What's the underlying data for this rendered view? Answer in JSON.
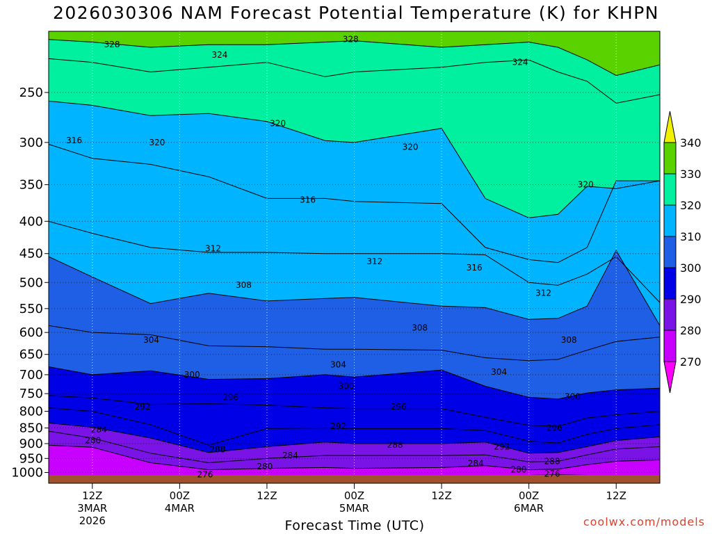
{
  "title": "2026030306 NAM Forecast Potential Temperature (K) for KHPN",
  "watermark": "coolwx.com/models",
  "chart_data": {
    "type": "area",
    "title": "2026030306 NAM Forecast Potential Temperature (K) for KHPN",
    "xlabel": "Forecast Time (UTC)",
    "ylabel": "",
    "y_axis": {
      "scale": "log",
      "inverted": true,
      "range_hPa": [
        1040,
        200
      ],
      "ticks": [
        250,
        300,
        350,
        400,
        450,
        500,
        550,
        600,
        650,
        700,
        750,
        800,
        850,
        900,
        950,
        1000
      ]
    },
    "x_axis": {
      "range_hours": [
        0,
        84
      ],
      "ticks": [
        {
          "hour": 6,
          "lines": [
            "12Z",
            "3MAR",
            "2026"
          ]
        },
        {
          "hour": 18,
          "lines": [
            "00Z",
            "4MAR"
          ]
        },
        {
          "hour": 30,
          "lines": [
            "12Z"
          ]
        },
        {
          "hour": 42,
          "lines": [
            "00Z",
            "5MAR"
          ]
        },
        {
          "hour": 54,
          "lines": [
            "12Z"
          ]
        },
        {
          "hour": 66,
          "lines": [
            "00Z",
            "6MAR"
          ]
        },
        {
          "hour": 78,
          "lines": [
            "12Z"
          ]
        }
      ]
    },
    "grid": true,
    "colorbar": {
      "placement": "right",
      "levels": [
        270,
        280,
        290,
        300,
        310,
        320,
        330,
        340
      ],
      "colors": [
        "#ff00ff",
        "#c800ff",
        "#7a14e6",
        "#0000e6",
        "#1e5fe6",
        "#00b4ff",
        "#00f0a0",
        "#5ad200",
        "#f0f000"
      ]
    },
    "contour_interval": 4,
    "units": "K",
    "series": [
      {
        "name": "276",
        "values": [
          [
            0,
            1032
          ],
          [
            6,
            1032
          ],
          [
            18,
            1020
          ],
          [
            22,
            1012
          ],
          [
            30,
            1018
          ],
          [
            38,
            1022
          ],
          [
            42,
            1025
          ],
          [
            54,
            1025
          ],
          [
            60,
            1022
          ],
          [
            66,
            1010
          ],
          [
            70,
            1008
          ],
          [
            74,
            1010
          ],
          [
            78,
            1025
          ],
          [
            84,
            1030
          ]
        ]
      },
      {
        "name": "280",
        "values": [
          [
            0,
            905
          ],
          [
            6,
            912
          ],
          [
            14,
            965
          ],
          [
            22,
            990
          ],
          [
            30,
            985
          ],
          [
            38,
            982
          ],
          [
            42,
            985
          ],
          [
            54,
            982
          ],
          [
            60,
            975
          ],
          [
            66,
            990
          ],
          [
            70,
            988
          ],
          [
            74,
            972
          ],
          [
            78,
            960
          ],
          [
            84,
            955
          ]
        ]
      },
      {
        "name": "284",
        "values": [
          [
            0,
            860
          ],
          [
            6,
            882
          ],
          [
            14,
            932
          ],
          [
            22,
            965
          ],
          [
            30,
            950
          ],
          [
            38,
            940
          ],
          [
            42,
            940
          ],
          [
            54,
            940
          ],
          [
            60,
            938
          ],
          [
            66,
            962
          ],
          [
            70,
            960
          ],
          [
            74,
            938
          ],
          [
            78,
            918
          ],
          [
            84,
            910
          ]
        ]
      },
      {
        "name": "288",
        "values": [
          [
            0,
            835
          ],
          [
            6,
            848
          ],
          [
            14,
            882
          ],
          [
            22,
            930
          ],
          [
            30,
            910
          ],
          [
            38,
            895
          ],
          [
            42,
            900
          ],
          [
            54,
            900
          ],
          [
            60,
            895
          ],
          [
            66,
            932
          ],
          [
            70,
            930
          ],
          [
            74,
            910
          ],
          [
            78,
            890
          ],
          [
            84,
            878
          ]
        ]
      },
      {
        "name": "292",
        "values": [
          [
            0,
            790
          ],
          [
            6,
            800
          ],
          [
            14,
            840
          ],
          [
            22,
            905
          ],
          [
            30,
            852
          ],
          [
            38,
            850
          ],
          [
            42,
            852
          ],
          [
            54,
            852
          ],
          [
            60,
            858
          ],
          [
            66,
            892
          ],
          [
            70,
            898
          ],
          [
            74,
            870
          ],
          [
            78,
            852
          ],
          [
            84,
            840
          ]
        ]
      },
      {
        "name": "296",
        "values": [
          [
            0,
            755
          ],
          [
            6,
            762
          ],
          [
            14,
            780
          ],
          [
            22,
            778
          ],
          [
            30,
            782
          ],
          [
            38,
            790
          ],
          [
            42,
            792
          ],
          [
            54,
            792
          ],
          [
            60,
            818
          ],
          [
            66,
            842
          ],
          [
            70,
            845
          ],
          [
            74,
            820
          ],
          [
            78,
            810
          ],
          [
            84,
            800
          ]
        ]
      },
      {
        "name": "300",
        "values": [
          [
            0,
            680
          ],
          [
            6,
            700
          ],
          [
            14,
            690
          ],
          [
            22,
            712
          ],
          [
            30,
            710
          ],
          [
            38,
            700
          ],
          [
            42,
            706
          ],
          [
            54,
            688
          ],
          [
            60,
            730
          ],
          [
            66,
            760
          ],
          [
            70,
            765
          ],
          [
            74,
            748
          ],
          [
            78,
            740
          ],
          [
            84,
            735
          ]
        ]
      },
      {
        "name": "304",
        "values": [
          [
            0,
            585
          ],
          [
            6,
            600
          ],
          [
            14,
            605
          ],
          [
            22,
            630
          ],
          [
            30,
            632
          ],
          [
            38,
            638
          ],
          [
            42,
            638
          ],
          [
            54,
            640
          ],
          [
            60,
            658
          ],
          [
            66,
            665
          ],
          [
            70,
            662
          ],
          [
            74,
            640
          ],
          [
            78,
            620
          ],
          [
            84,
            610
          ]
        ]
      },
      {
        "name": "308",
        "values": [
          [
            0,
            455
          ],
          [
            6,
            490
          ],
          [
            14,
            540
          ],
          [
            22,
            520
          ],
          [
            30,
            535
          ],
          [
            38,
            530
          ],
          [
            42,
            528
          ],
          [
            54,
            545
          ],
          [
            60,
            548
          ],
          [
            66,
            572
          ],
          [
            70,
            570
          ],
          [
            74,
            545
          ],
          [
            78,
            445
          ],
          [
            84,
            585
          ]
        ]
      },
      {
        "name": "312",
        "values": [
          [
            0,
            400
          ],
          [
            6,
            418
          ],
          [
            14,
            440
          ],
          [
            22,
            448
          ],
          [
            30,
            448
          ],
          [
            38,
            450
          ],
          [
            42,
            450
          ],
          [
            54,
            450
          ],
          [
            60,
            452
          ],
          [
            66,
            500
          ],
          [
            70,
            505
          ],
          [
            74,
            485
          ],
          [
            78,
            455
          ],
          [
            84,
            538
          ]
        ]
      },
      {
        "name": "316",
        "values": [
          [
            0,
            302
          ],
          [
            6,
            318
          ],
          [
            14,
            325
          ],
          [
            22,
            340
          ],
          [
            30,
            368
          ],
          [
            38,
            368
          ],
          [
            42,
            372
          ],
          [
            54,
            375
          ],
          [
            60,
            440
          ],
          [
            66,
            460
          ],
          [
            70,
            465
          ],
          [
            74,
            440
          ],
          [
            78,
            345
          ],
          [
            84,
            345
          ]
        ]
      },
      {
        "name": "320",
        "values": [
          [
            0,
            258
          ],
          [
            6,
            262
          ],
          [
            14,
            272
          ],
          [
            22,
            270
          ],
          [
            30,
            278
          ],
          [
            38,
            298
          ],
          [
            42,
            300
          ],
          [
            54,
            285
          ],
          [
            60,
            368
          ],
          [
            66,
            395
          ],
          [
            70,
            390
          ],
          [
            74,
            352
          ],
          [
            78,
            355
          ],
          [
            84,
            345
          ]
        ]
      },
      {
        "name": "324",
        "values": [
          [
            0,
            221
          ],
          [
            6,
            224
          ],
          [
            14,
            232
          ],
          [
            22,
            228
          ],
          [
            30,
            224
          ],
          [
            38,
            236
          ],
          [
            42,
            232
          ],
          [
            54,
            228
          ],
          [
            60,
            224
          ],
          [
            66,
            222
          ],
          [
            70,
            232
          ],
          [
            74,
            240
          ],
          [
            78,
            260
          ],
          [
            84,
            252
          ]
        ]
      },
      {
        "name": "328",
        "values": [
          [
            0,
            206
          ],
          [
            6,
            208
          ],
          [
            14,
            212
          ],
          [
            22,
            210
          ],
          [
            30,
            210
          ],
          [
            38,
            208
          ],
          [
            42,
            207
          ],
          [
            54,
            212
          ],
          [
            60,
            210
          ],
          [
            66,
            208
          ],
          [
            70,
            212
          ],
          [
            74,
            222
          ],
          [
            78,
            235
          ],
          [
            84,
            226
          ]
        ]
      }
    ],
    "contour_labels": [
      {
        "text": "328",
        "x": 8.7,
        "y": 210
      },
      {
        "text": "328",
        "x": 41.5,
        "y": 206
      },
      {
        "text": "324",
        "x": 23.5,
        "y": 218
      },
      {
        "text": "324",
        "x": 64.8,
        "y": 224
      },
      {
        "text": "320",
        "x": 14.9,
        "y": 300
      },
      {
        "text": "320",
        "x": 31.5,
        "y": 280
      },
      {
        "text": "320",
        "x": 49.7,
        "y": 305
      },
      {
        "text": "320",
        "x": 73.8,
        "y": 350
      },
      {
        "text": "316",
        "x": 3.5,
        "y": 298
      },
      {
        "text": "316",
        "x": 35.6,
        "y": 370
      },
      {
        "text": "316",
        "x": 58.5,
        "y": 474
      },
      {
        "text": "312",
        "x": 22.6,
        "y": 442
      },
      {
        "text": "312",
        "x": 44.8,
        "y": 463
      },
      {
        "text": "312",
        "x": 68.0,
        "y": 520
      },
      {
        "text": "308",
        "x": 26.8,
        "y": 505
      },
      {
        "text": "308",
        "x": 51.0,
        "y": 590
      },
      {
        "text": "308",
        "x": 71.5,
        "y": 617
      },
      {
        "text": "304",
        "x": 14.1,
        "y": 617
      },
      {
        "text": "304",
        "x": 39.8,
        "y": 675
      },
      {
        "text": "304",
        "x": 61.9,
        "y": 693
      },
      {
        "text": "300",
        "x": 19.7,
        "y": 700
      },
      {
        "text": "300",
        "x": 40.9,
        "y": 730
      },
      {
        "text": "300",
        "x": 72.0,
        "y": 758
      },
      {
        "text": "296",
        "x": 25.0,
        "y": 760
      },
      {
        "text": "296",
        "x": 48.1,
        "y": 787
      },
      {
        "text": "296",
        "x": 69.5,
        "y": 850
      },
      {
        "text": "292",
        "x": 12.9,
        "y": 787
      },
      {
        "text": "292",
        "x": 39.8,
        "y": 845
      },
      {
        "text": "292",
        "x": 62.3,
        "y": 910
      },
      {
        "text": "288",
        "x": 23.2,
        "y": 920
      },
      {
        "text": "288",
        "x": 47.6,
        "y": 905
      },
      {
        "text": "288",
        "x": 69.2,
        "y": 960
      },
      {
        "text": "284",
        "x": 6.9,
        "y": 855
      },
      {
        "text": "284",
        "x": 33.2,
        "y": 940
      },
      {
        "text": "284",
        "x": 58.7,
        "y": 967
      },
      {
        "text": "280",
        "x": 6.1,
        "y": 890
      },
      {
        "text": "280",
        "x": 29.7,
        "y": 978
      },
      {
        "text": "280",
        "x": 64.6,
        "y": 990
      },
      {
        "text": "276",
        "x": 21.5,
        "y": 1008
      },
      {
        "text": "276",
        "x": 69.2,
        "y": 1005
      }
    ]
  }
}
